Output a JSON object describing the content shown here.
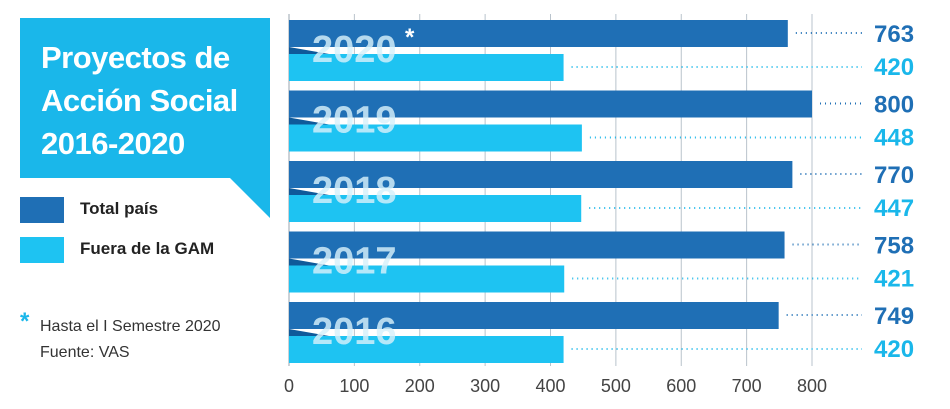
{
  "title": {
    "line1": "Proyectos de",
    "line2": "Acción Social",
    "line3": "2016-2020"
  },
  "legend": [
    {
      "label": "Total país",
      "color": "#1f6fb5"
    },
    {
      "label": "Fuera de la GAM",
      "color": "#1ec3f2"
    }
  ],
  "notes": {
    "star": "*",
    "line1": "Hasta el I Semestre 2020",
    "line2": "Fuente: VAS"
  },
  "colors": {
    "total": "#1f6fb5",
    "total_band": "#0f5a9a",
    "gam": "#1ec3f2",
    "gam_band": "#19a9dc",
    "value_total": "#1f6fb5",
    "value_gam": "#1ab7ea",
    "axis_text": "#444444"
  },
  "chart_data": {
    "type": "bar",
    "orientation": "horizontal",
    "categories": [
      "2020",
      "2019",
      "2018",
      "2017",
      "2016"
    ],
    "category_marks": [
      "*",
      "",
      "",
      "",
      ""
    ],
    "series": [
      {
        "name": "Total país",
        "values": [
          763,
          800,
          770,
          758,
          749
        ]
      },
      {
        "name": "Fuera de la GAM",
        "values": [
          420,
          448,
          447,
          421,
          420
        ]
      }
    ],
    "xlim": [
      0,
      850
    ],
    "xticks": [
      0,
      100,
      200,
      300,
      400,
      500,
      600,
      700,
      800
    ],
    "grid": true,
    "legend_position": "left"
  }
}
